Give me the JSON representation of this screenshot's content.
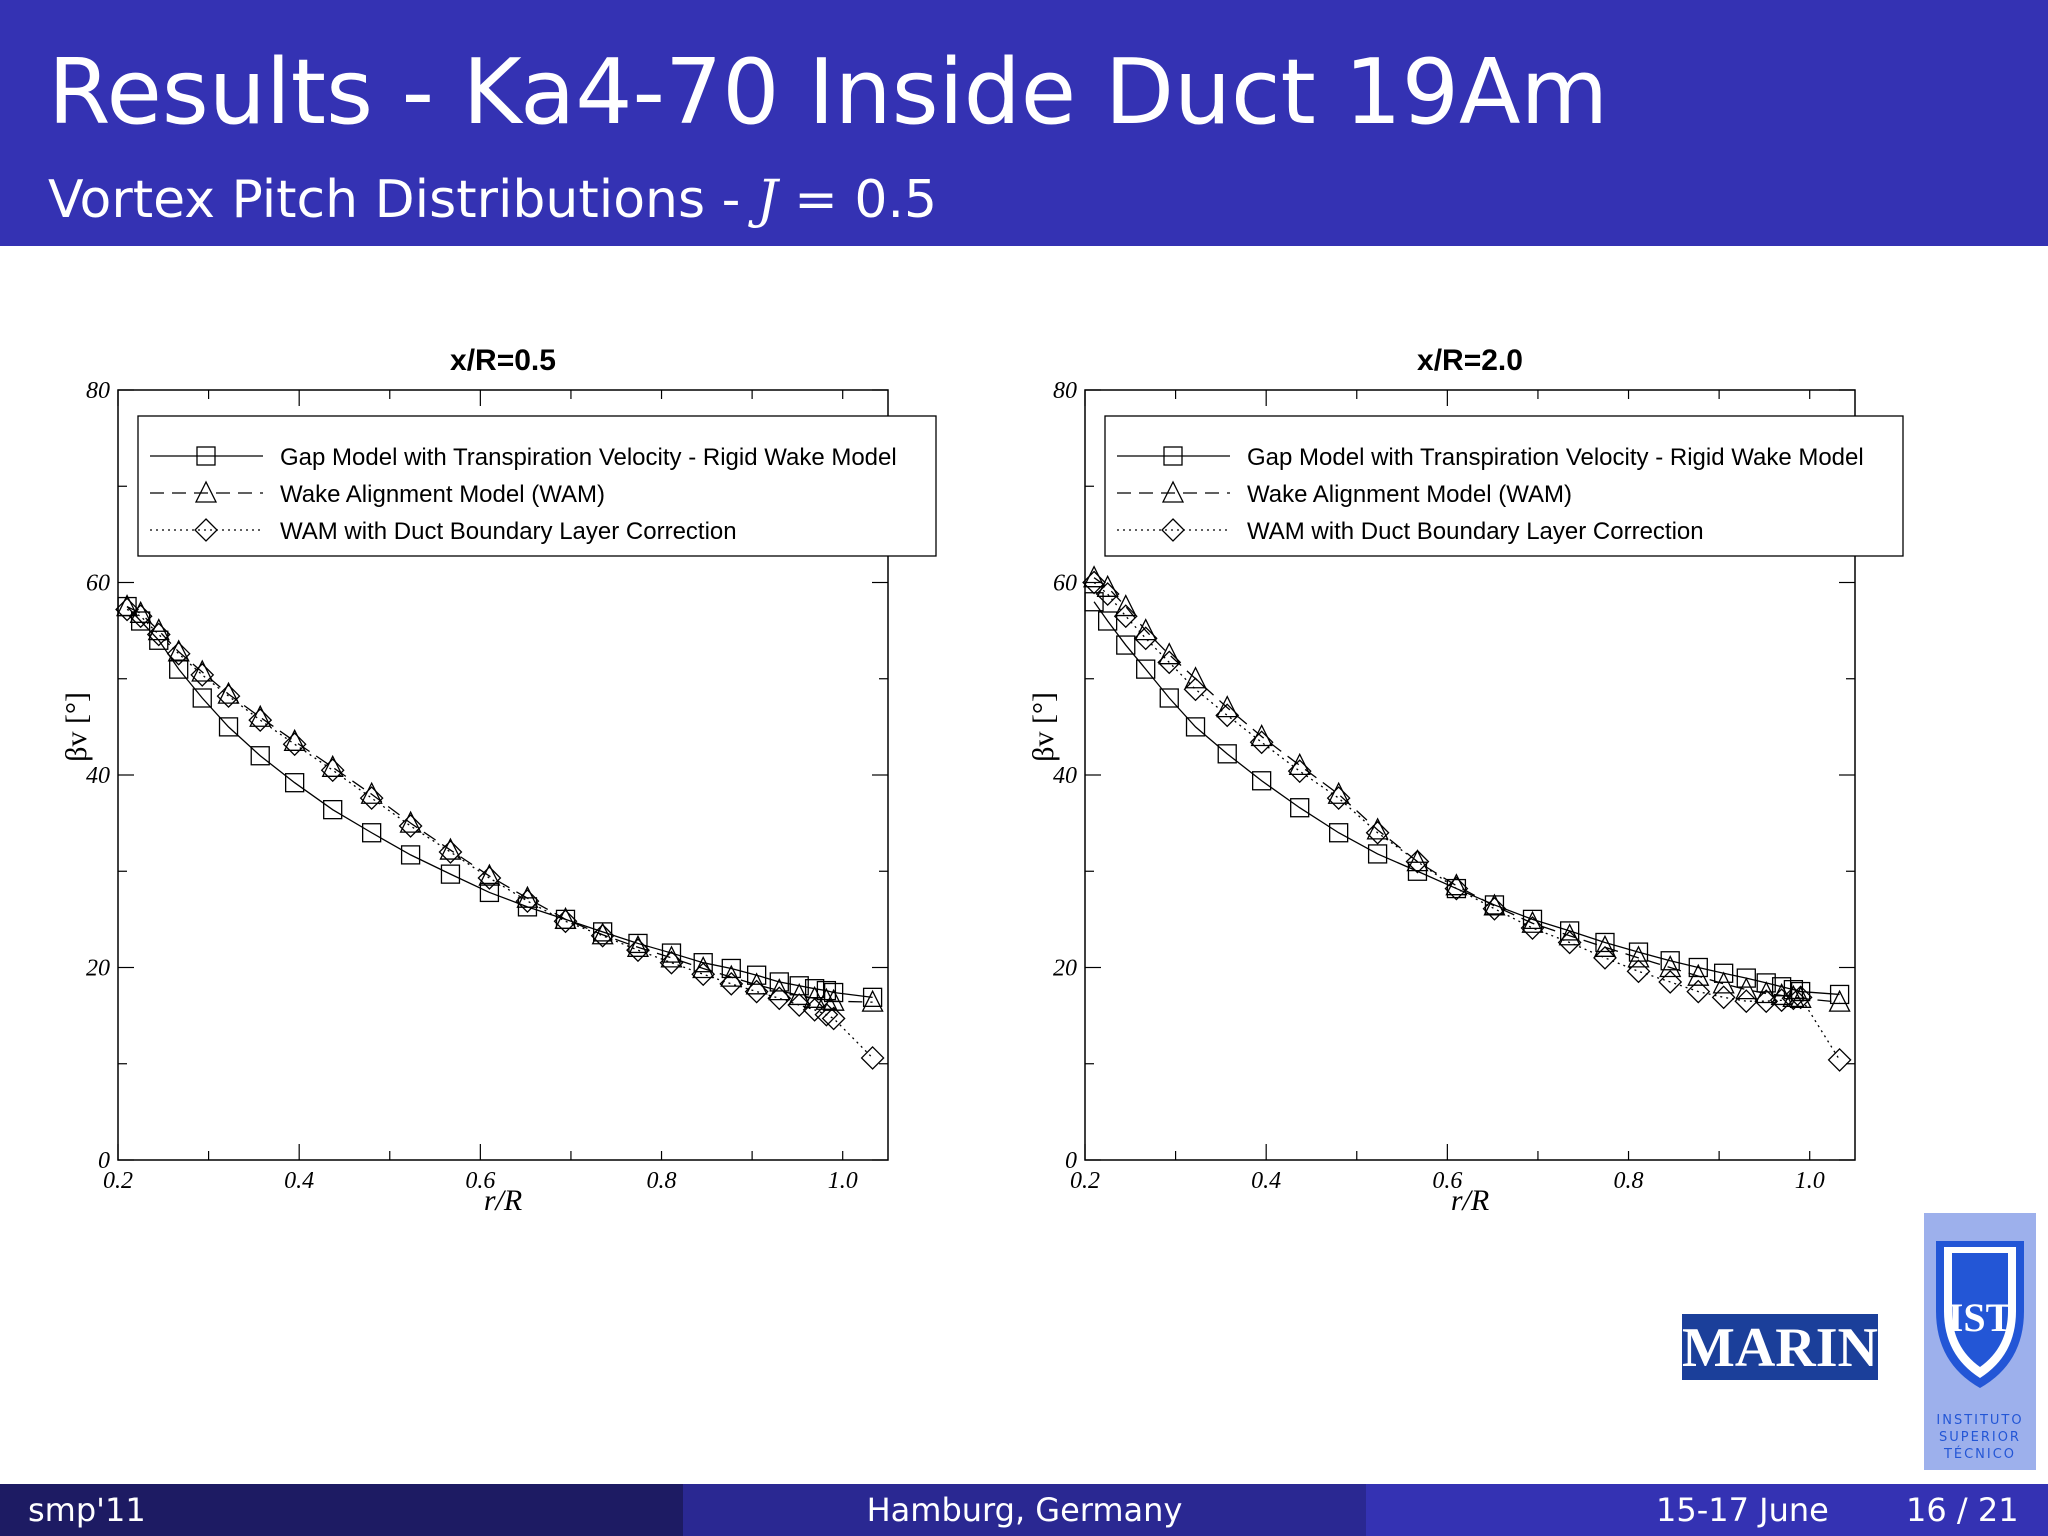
{
  "slide": {
    "title": "Results - Ka4-70 Inside Duct 19Am",
    "subtitle_text": "Vortex Pitch Distributions - ",
    "subtitle_var": "J",
    "subtitle_eq": " = 0.5"
  },
  "footer": {
    "left": "smp'11",
    "middle": "Hamburg, Germany",
    "date": "15-17 June",
    "page": "16 / 21"
  },
  "logos": {
    "marin_text": "MARIN",
    "ist_monogram": "IST",
    "ist_text": [
      "INSTITUTO",
      "SUPERIOR",
      "TÉCNICO"
    ]
  },
  "colors": {
    "header": "#3432b3",
    "footer_left": "#1d1b63",
    "footer_mid": "#2a2892",
    "footer_right": "#3432b3",
    "ist_bg": "#9db0ec",
    "ist_shield": "#2356d6",
    "marin_blue": "#1b3f9a"
  },
  "chart_data": [
    {
      "type": "line",
      "title": "x/R=0.5",
      "xlabel": "r/R",
      "ylabel": "βv [°]",
      "xlim": [
        0.2,
        1.05
      ],
      "ylim": [
        0,
        80
      ],
      "xticks": [
        "0.2",
        "0.4",
        "0.6",
        "0.8",
        "1.0"
      ],
      "yticks": [
        "0",
        "20",
        "40",
        "60",
        "80"
      ],
      "grid": false,
      "legend_position": "top",
      "series": [
        {
          "name": "Gap Model with Transpiration Velocity - Rigid Wake Model",
          "line": "solid",
          "marker": "square",
          "x": [
            0.21,
            0.225,
            0.245,
            0.267,
            0.293,
            0.322,
            0.357,
            0.395,
            0.437,
            0.48,
            0.523,
            0.567,
            0.61,
            0.652,
            0.694,
            0.735,
            0.774,
            0.811,
            0.846,
            0.877,
            0.905,
            0.93,
            0.952,
            0.969,
            0.982,
            0.99,
            1.033
          ],
          "y": [
            57.5,
            56,
            54,
            51,
            48,
            45,
            42,
            39.2,
            36.4,
            34,
            31.7,
            29.7,
            27.8,
            26.3,
            25,
            23.7,
            22.5,
            21.5,
            20.5,
            19.9,
            19.2,
            18.5,
            18.1,
            17.8,
            17.6,
            17.4,
            16.9
          ]
        },
        {
          "name": "Wake Alignment Model (WAM)",
          "line": "dashed",
          "marker": "triangle",
          "x": [
            0.21,
            0.225,
            0.245,
            0.267,
            0.293,
            0.322,
            0.357,
            0.395,
            0.437,
            0.48,
            0.523,
            0.567,
            0.61,
            0.652,
            0.694,
            0.735,
            0.774,
            0.811,
            0.846,
            0.877,
            0.905,
            0.93,
            0.952,
            0.969,
            0.982,
            0.99,
            1.033
          ],
          "y": [
            57.5,
            56.8,
            55,
            52.8,
            50.7,
            48.4,
            46,
            43.5,
            40.8,
            38,
            35,
            32.2,
            29.5,
            27.2,
            25,
            23.4,
            22.1,
            21,
            19.9,
            19,
            18.2,
            17.6,
            17.1,
            16.8,
            16.6,
            16.5,
            16.4
          ]
        },
        {
          "name": "WAM with Duct Boundary Layer Correction",
          "line": "dotted",
          "marker": "diamond",
          "x": [
            0.21,
            0.225,
            0.245,
            0.267,
            0.293,
            0.322,
            0.357,
            0.395,
            0.437,
            0.48,
            0.523,
            0.567,
            0.61,
            0.652,
            0.694,
            0.735,
            0.774,
            0.811,
            0.846,
            0.877,
            0.905,
            0.93,
            0.952,
            0.969,
            0.982,
            0.99,
            1.033
          ],
          "y": [
            57.2,
            56.5,
            54.6,
            52.6,
            50.4,
            48.2,
            45.7,
            43.2,
            40.5,
            37.6,
            34.7,
            32,
            29.3,
            26.9,
            24.8,
            23.3,
            21.8,
            20.5,
            19.3,
            18.3,
            17.5,
            16.8,
            16.1,
            15.6,
            15.1,
            14.7,
            10.6
          ]
        }
      ]
    },
    {
      "type": "line",
      "title": "x/R=2.0",
      "xlabel": "r/R",
      "ylabel": "βv [°]",
      "xlim": [
        0.2,
        1.05
      ],
      "ylim": [
        0,
        80
      ],
      "xticks": [
        "0.2",
        "0.4",
        "0.6",
        "0.8",
        "1.0"
      ],
      "yticks": [
        "0",
        "20",
        "40",
        "60",
        "80"
      ],
      "grid": false,
      "legend_position": "top",
      "series": [
        {
          "name": "Gap Model with Transpiration Velocity - Rigid Wake Model",
          "line": "solid",
          "marker": "square",
          "x": [
            0.21,
            0.225,
            0.245,
            0.267,
            0.293,
            0.322,
            0.357,
            0.395,
            0.437,
            0.48,
            0.523,
            0.567,
            0.61,
            0.652,
            0.694,
            0.735,
            0.774,
            0.811,
            0.846,
            0.877,
            0.905,
            0.93,
            0.952,
            0.969,
            0.982,
            0.99,
            1.033
          ],
          "y": [
            58,
            56,
            53.5,
            51,
            48,
            45,
            42.2,
            39.4,
            36.6,
            34,
            31.8,
            30,
            28.2,
            26.5,
            25,
            23.8,
            22.6,
            21.6,
            20.7,
            20,
            19.4,
            18.9,
            18.4,
            18,
            17.7,
            17.5,
            17.2
          ]
        },
        {
          "name": "Wake Alignment Model (WAM)",
          "line": "dashed",
          "marker": "triangle",
          "x": [
            0.21,
            0.225,
            0.245,
            0.267,
            0.293,
            0.322,
            0.357,
            0.395,
            0.437,
            0.48,
            0.523,
            0.567,
            0.61,
            0.652,
            0.694,
            0.735,
            0.774,
            0.811,
            0.846,
            0.877,
            0.905,
            0.93,
            0.952,
            0.969,
            0.982,
            0.99,
            1.033
          ],
          "y": [
            60.5,
            59.5,
            57.5,
            55,
            52.5,
            50,
            47,
            44,
            41,
            38,
            34.3,
            31,
            28.5,
            26.4,
            24.6,
            23.3,
            22.1,
            21,
            20,
            19.1,
            18.3,
            17.7,
            17.3,
            17.1,
            16.9,
            16.8,
            16.4
          ]
        },
        {
          "name": "WAM with Duct Boundary Layer Correction",
          "line": "dotted",
          "marker": "diamond",
          "x": [
            0.21,
            0.225,
            0.245,
            0.267,
            0.293,
            0.322,
            0.357,
            0.395,
            0.437,
            0.48,
            0.523,
            0.567,
            0.61,
            0.652,
            0.694,
            0.735,
            0.774,
            0.811,
            0.846,
            0.877,
            0.905,
            0.93,
            0.952,
            0.969,
            0.982,
            0.99,
            1.033
          ],
          "y": [
            60,
            58.8,
            56.5,
            54.2,
            51.7,
            48.9,
            46.2,
            43.4,
            40.4,
            37.6,
            34,
            31,
            28.2,
            26.1,
            24.1,
            22.6,
            21,
            19.6,
            18.5,
            17.5,
            16.9,
            16.5,
            16.5,
            16.6,
            16.8,
            16.9,
            10.4
          ]
        }
      ]
    }
  ]
}
